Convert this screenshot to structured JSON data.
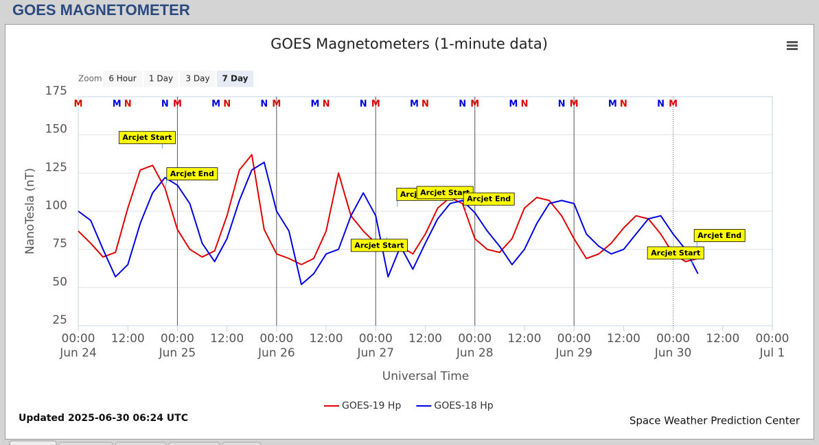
{
  "page": {
    "title": "GOES MAGNETOMETER"
  },
  "chart_data": {
    "type": "line",
    "title": "GOES Magnetometers (1-minute data)",
    "zoom": {
      "label": "Zoom",
      "buttons": [
        "6 Hour",
        "1 Day",
        "3 Day",
        "7 Day"
      ],
      "selected": 3
    },
    "y_label": "NanoTesla (nT)",
    "x_label": "Universal Time",
    "ylim": [
      25,
      175
    ],
    "yticks": [
      25,
      50,
      75,
      100,
      125,
      150,
      175
    ],
    "grid": true,
    "xlim": [
      "06-24 00:00",
      "07-01 00:00"
    ],
    "xticks": [
      {
        "value": "06-24 00:00",
        "label": "00:00"
      },
      {
        "value": "06-24 12:00",
        "label": "12:00"
      },
      {
        "value": "06-25 00:00",
        "label": "00:00"
      },
      {
        "value": "06-25 12:00",
        "label": "12:00"
      },
      {
        "value": "06-26 00:00",
        "label": "00:00"
      },
      {
        "value": "06-26 12:00",
        "label": "12:00"
      },
      {
        "value": "06-27 00:00",
        "label": "00:00"
      },
      {
        "value": "06-27 12:00",
        "label": "12:00"
      },
      {
        "value": "06-28 00:00",
        "label": "00:00"
      },
      {
        "value": "06-28 12:00",
        "label": "12:00"
      },
      {
        "value": "06-29 00:00",
        "label": "00:00"
      },
      {
        "value": "06-29 12:00",
        "label": "12:00"
      },
      {
        "value": "06-30 00:00",
        "label": "00:00"
      },
      {
        "value": "06-30 12:00",
        "label": "12:00"
      },
      {
        "value": "07-01 00:00",
        "label": "00:00"
      }
    ],
    "x_date_labels": [
      {
        "value": "06-24 00:00",
        "label": "Jun 24"
      },
      {
        "value": "06-25 00:00",
        "label": "Jun 25"
      },
      {
        "value": "06-26 00:00",
        "label": "Jun 26"
      },
      {
        "value": "06-27 00:00",
        "label": "Jun 27"
      },
      {
        "value": "06-28 00:00",
        "label": "Jun 28"
      },
      {
        "value": "06-29 00:00",
        "label": "Jun 29"
      },
      {
        "value": "06-30 00:00",
        "label": "Jun 30"
      },
      {
        "value": "07-01 00:00",
        "label": "Jul 1"
      }
    ],
    "day_lines": [
      "06-25 00:00",
      "06-26 00:00",
      "06-27 00:00",
      "06-28 00:00",
      "06-29 00:00"
    ],
    "dotted_day_lines": [
      "06-30 00:00"
    ],
    "x": [
      "06-24 00:00",
      "06-24 03:00",
      "06-24 06:00",
      "06-24 09:00",
      "06-24 12:00",
      "06-24 15:00",
      "06-24 18:00",
      "06-24 21:00",
      "06-25 00:00",
      "06-25 03:00",
      "06-25 06:00",
      "06-25 09:00",
      "06-25 12:00",
      "06-25 15:00",
      "06-25 18:00",
      "06-25 21:00",
      "06-26 00:00",
      "06-26 03:00",
      "06-26 06:00",
      "06-26 09:00",
      "06-26 12:00",
      "06-26 15:00",
      "06-26 18:00",
      "06-26 21:00",
      "06-27 00:00",
      "06-27 03:00",
      "06-27 06:00",
      "06-27 09:00",
      "06-27 12:00",
      "06-27 15:00",
      "06-27 18:00",
      "06-27 21:00",
      "06-28 00:00",
      "06-28 03:00",
      "06-28 06:00",
      "06-28 09:00",
      "06-28 12:00",
      "06-28 15:00",
      "06-28 18:00",
      "06-28 21:00",
      "06-29 00:00",
      "06-29 03:00",
      "06-29 06:00",
      "06-29 09:00",
      "06-29 12:00",
      "06-29 15:00",
      "06-29 18:00",
      "06-29 21:00",
      "06-30 00:00",
      "06-30 03:00",
      "06-30 06:00"
    ],
    "series": [
      {
        "name": "GOES-19 Hp",
        "color": "#e00000",
        "values": [
          87,
          79,
          70,
          73,
          102,
          127,
          130,
          115,
          88,
          75,
          70,
          74,
          97,
          127,
          137,
          88,
          72,
          69,
          65,
          69,
          87,
          125,
          97,
          87,
          79,
          75,
          77,
          72,
          85,
          102,
          109,
          105,
          82,
          75,
          73,
          82,
          102,
          109,
          107,
          97,
          82,
          69,
          72,
          79,
          89,
          97,
          95,
          85,
          72,
          67,
          69
        ]
      },
      {
        "name": "GOES-18 Hp",
        "color": "#0000e0",
        "values": [
          100,
          94,
          75,
          57,
          65,
          92,
          112,
          122,
          117,
          105,
          79,
          67,
          82,
          107,
          127,
          132,
          100,
          87,
          52,
          59,
          72,
          75,
          97,
          112,
          97,
          57,
          77,
          62,
          79,
          95,
          105,
          107,
          99,
          87,
          77,
          65,
          75,
          92,
          105,
          107,
          105,
          85,
          77,
          72,
          75,
          85,
          95,
          97,
          85,
          75,
          59
        ]
      }
    ],
    "legend": "bottom",
    "markers": [
      {
        "text": "M",
        "color": "#e00000",
        "x": "06-24 00:00"
      },
      {
        "text": "N",
        "color": "#e00000",
        "x": "06-24 12:00"
      },
      {
        "text": "M",
        "color": "#e00000",
        "x": "06-25 00:00"
      },
      {
        "text": "N",
        "color": "#e00000",
        "x": "06-25 12:00"
      },
      {
        "text": "M",
        "color": "#e00000",
        "x": "06-26 00:00"
      },
      {
        "text": "N",
        "color": "#e00000",
        "x": "06-26 12:00"
      },
      {
        "text": "M",
        "color": "#e00000",
        "x": "06-27 00:00"
      },
      {
        "text": "N",
        "color": "#e00000",
        "x": "06-27 12:00"
      },
      {
        "text": "M",
        "color": "#e00000",
        "x": "06-28 00:00"
      },
      {
        "text": "N",
        "color": "#e00000",
        "x": "06-28 12:00"
      },
      {
        "text": "M",
        "color": "#e00000",
        "x": "06-29 00:00"
      },
      {
        "text": "N",
        "color": "#e00000",
        "x": "06-29 12:00"
      },
      {
        "text": "M",
        "color": "#e00000",
        "x": "06-30 00:00"
      },
      {
        "text": "M",
        "color": "#0000e0",
        "x": "06-24 09:20"
      },
      {
        "text": "N",
        "color": "#0000e0",
        "x": "06-24 21:00"
      },
      {
        "text": "M",
        "color": "#0000e0",
        "x": "06-25 09:20"
      },
      {
        "text": "N",
        "color": "#0000e0",
        "x": "06-25 21:00"
      },
      {
        "text": "M",
        "color": "#0000e0",
        "x": "06-26 09:20"
      },
      {
        "text": "N",
        "color": "#0000e0",
        "x": "06-26 21:00"
      },
      {
        "text": "M",
        "color": "#0000e0",
        "x": "06-27 09:20"
      },
      {
        "text": "N",
        "color": "#0000e0",
        "x": "06-27 21:00"
      },
      {
        "text": "M",
        "color": "#0000e0",
        "x": "06-28 09:20"
      },
      {
        "text": "N",
        "color": "#0000e0",
        "x": "06-28 21:00"
      },
      {
        "text": "M",
        "color": "#0000e0",
        "x": "06-29 09:20"
      },
      {
        "text": "N",
        "color": "#0000e0",
        "x": "06-29 21:00"
      }
    ],
    "annotations": [
      {
        "text": "Arcjet Start",
        "x": "06-24 20:20",
        "y": 141
      },
      {
        "text": "Arcjet End",
        "x": "06-24 21:05",
        "y": 115
      },
      {
        "text": "Arcjet Start",
        "x": "06-27 02:40",
        "y": 83
      },
      {
        "text": "Arcjet Start",
        "x": "06-27 05:15",
        "y": 103
      },
      {
        "text": "Arcjet Start",
        "x": "06-27 18:45",
        "y": 105
      },
      {
        "text": "Arcjet End",
        "x": "06-27 21:45",
        "y": 99
      },
      {
        "text": "Arcjet Start",
        "x": "06-30 04:35",
        "y": 65
      },
      {
        "text": "Arcjet End",
        "x": "06-30 05:45",
        "y": 76
      }
    ],
    "updated": "Updated 2025-06-30 06:24 UTC",
    "credit": "Space Weather Prediction Center"
  }
}
